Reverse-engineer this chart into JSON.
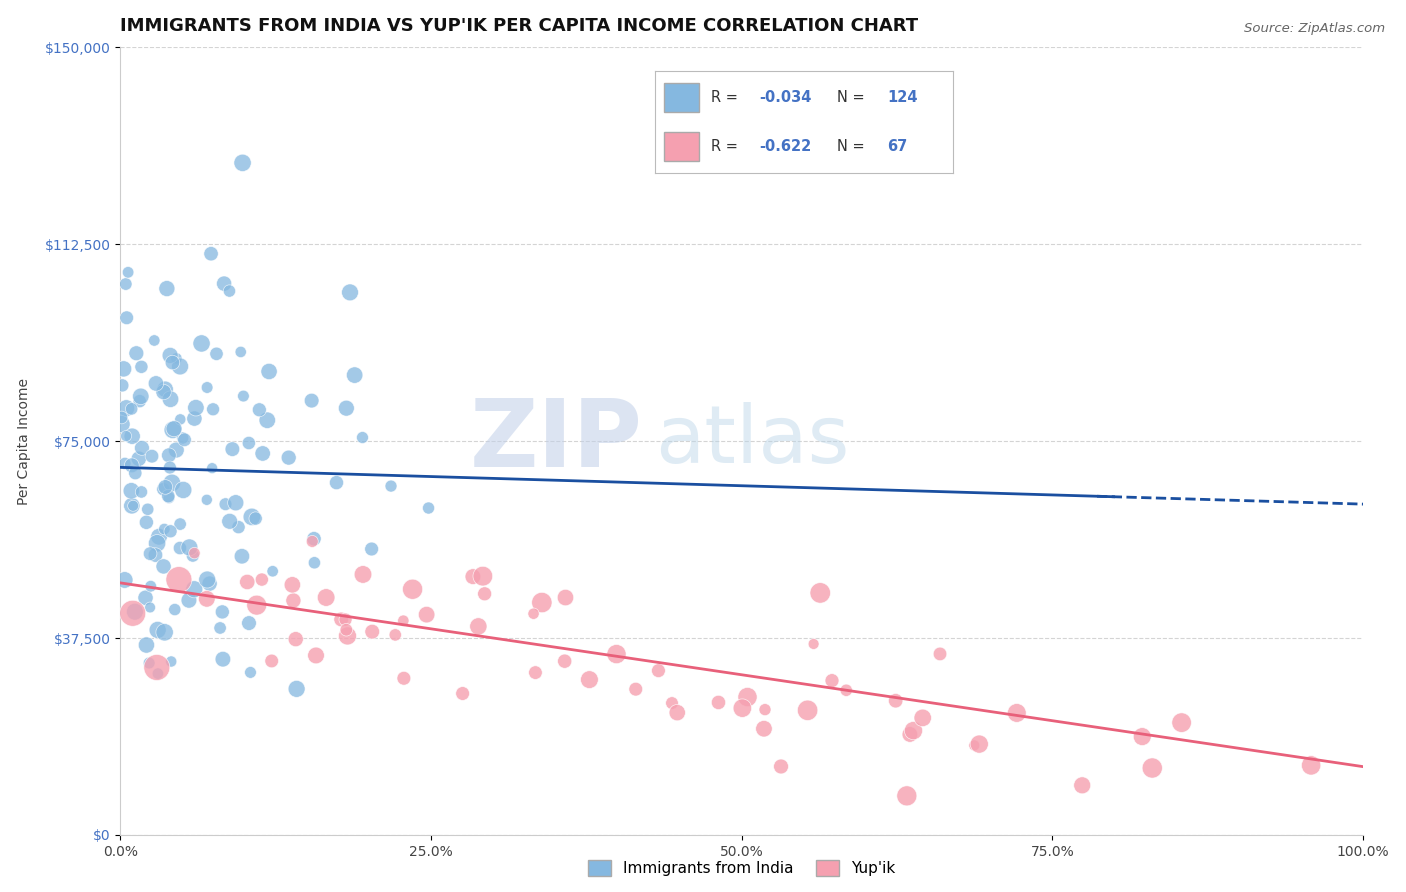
{
  "title": "IMMIGRANTS FROM INDIA VS YUP'IK PER CAPITA INCOME CORRELATION CHART",
  "source": "Source: ZipAtlas.com",
  "ylabel": "Per Capita Income",
  "xlim": [
    0,
    1.0
  ],
  "ylim": [
    0,
    150000
  ],
  "xticks": [
    0.0,
    0.25,
    0.5,
    0.75,
    1.0
  ],
  "xticklabels": [
    "0.0%",
    "25.0%",
    "50.0%",
    "75.0%",
    "100.0%"
  ],
  "yticks": [
    0,
    37500,
    75000,
    112500,
    150000
  ],
  "yticklabels": [
    "$0",
    "$37,500",
    "$75,000",
    "$112,500",
    "$150,000"
  ],
  "series1_color": "#85b8e0",
  "series2_color": "#f5a0b0",
  "line1_color": "#1a4fa0",
  "line2_color": "#e8607a",
  "background_color": "#ffffff",
  "grid_color": "#d0d0d0",
  "title_fontsize": 13,
  "axis_label_fontsize": 10,
  "tick_fontsize": 10,
  "watermark_zip_color": "#c0cfe8",
  "watermark_atlas_color": "#b8d4e8",
  "yaxis_tick_color": "#4472c4",
  "legend_label1": "Immigrants from India",
  "legend_label2": "Yup'ik",
  "R1_text": "-0.034",
  "N1_text": "124",
  "R2_text": "-0.622",
  "N2_text": "67",
  "seed1": 7,
  "seed2": 13,
  "N1": 124,
  "N2": 67,
  "india_intercept": 70000,
  "india_slope": -8000,
  "yupik_intercept": 48000,
  "yupik_slope": -38000,
  "india_noise": 20000,
  "yupik_noise": 7000,
  "marker_size": 120
}
